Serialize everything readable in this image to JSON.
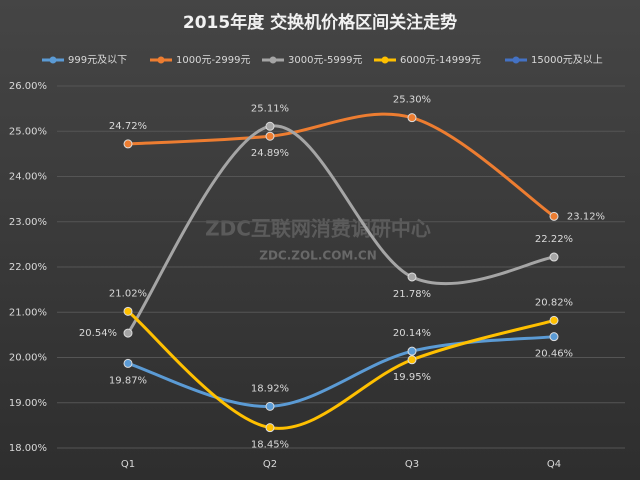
{
  "chart_data": {
    "type": "line",
    "title": "2015年度 交换机价格区间关注走势",
    "watermark": "ZDC互联网消费调研中心",
    "watermark_url": "ZDC.ZOL.COM.CN",
    "categories": [
      "Q1",
      "Q2",
      "Q3",
      "Q4"
    ],
    "smooth": true,
    "grid": true,
    "legend": "top",
    "ylim": [
      18,
      26
    ],
    "yticks": [
      {
        "value": 18,
        "label": "18.00%"
      },
      {
        "value": 19,
        "label": "19.00%"
      },
      {
        "value": 20,
        "label": "20.00%"
      },
      {
        "value": 21,
        "label": "21.00%"
      },
      {
        "value": 22,
        "label": "22.00%"
      },
      {
        "value": 23,
        "label": "23.00%"
      },
      {
        "value": 24,
        "label": "24.00%"
      },
      {
        "value": 25,
        "label": "25.00%"
      },
      {
        "value": 26,
        "label": "26.00%"
      }
    ],
    "series": [
      {
        "name": "999元及以下",
        "color": "#5b9bd5",
        "values": [
          19.87,
          18.92,
          20.14,
          20.46
        ],
        "value_labels": [
          "19.87%",
          "18.92%",
          "20.14%",
          "20.46%"
        ]
      },
      {
        "name": "1000元-2999元",
        "color": "#ed7d31",
        "values": [
          24.72,
          24.89,
          25.3,
          23.12
        ],
        "value_labels": [
          "24.72%",
          "24.89%",
          "25.30%",
          "23.12%"
        ]
      },
      {
        "name": "3000元-5999元",
        "color": "#a5a5a5",
        "values": [
          20.54,
          25.11,
          21.78,
          22.22
        ],
        "value_labels": [
          "20.54%",
          "25.11%",
          "21.78%",
          "22.22%"
        ]
      },
      {
        "name": "6000元-14999元",
        "color": "#ffc000",
        "values": [
          21.02,
          18.45,
          19.95,
          20.82
        ],
        "value_labels": [
          "21.02%",
          "18.45%",
          "19.95%",
          "20.82%"
        ]
      },
      {
        "name": "15000元及以上",
        "color": "#4472c4",
        "values": [
          null,
          null,
          null,
          null
        ]
      }
    ]
  }
}
